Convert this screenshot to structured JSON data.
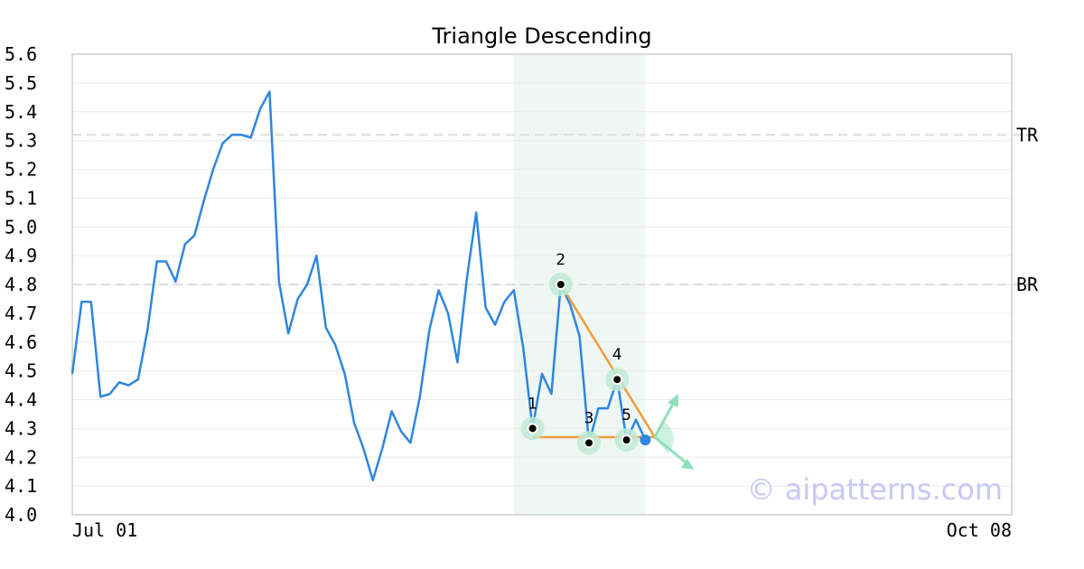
{
  "chart_data": {
    "type": "line",
    "title": "Triangle Descending",
    "xlabel": "",
    "ylabel": "",
    "ylim": [
      4.0,
      5.6
    ],
    "yticks": [
      "4.0",
      "4.1",
      "4.2",
      "4.3",
      "4.4",
      "4.5",
      "4.6",
      "4.7",
      "4.8",
      "4.9",
      "5.0",
      "5.1",
      "5.2",
      "5.3",
      "5.4",
      "5.5",
      "5.6"
    ],
    "xticks": [
      {
        "label": "Jul 01",
        "x": 0
      },
      {
        "label": "Oct 08",
        "x": 100
      }
    ],
    "xlim": [
      0,
      100
    ],
    "grid": true,
    "series": [
      {
        "color": "#2e86de",
        "values": [
          4.49,
          4.74,
          4.74,
          4.41,
          4.42,
          4.46,
          4.45,
          4.47,
          4.64,
          4.88,
          4.88,
          4.81,
          4.94,
          4.97,
          5.09,
          5.2,
          5.29,
          5.32,
          5.32,
          5.31,
          5.41,
          5.47,
          4.81,
          4.63,
          4.75,
          4.8,
          4.9,
          4.65,
          4.59,
          4.49,
          4.32,
          4.23,
          4.12,
          4.23,
          4.36,
          4.29,
          4.25,
          4.41,
          4.64,
          4.78,
          4.7,
          4.53,
          4.82,
          5.05,
          4.72,
          4.66,
          4.74,
          4.78,
          4.58,
          4.3,
          4.49,
          4.42,
          4.8,
          4.73,
          4.62,
          4.25,
          4.37,
          4.37,
          4.47,
          4.26,
          4.33,
          4.26
        ]
      }
    ],
    "reference_lines": [
      {
        "label": "TR",
        "y": 5.32
      },
      {
        "label": "BR",
        "y": 4.8
      }
    ],
    "highlight_range": {
      "x_start": 47,
      "x_end": 61,
      "color": "#eef7f3"
    },
    "pattern_points": [
      {
        "label": "1",
        "x": 49,
        "y": 4.3
      },
      {
        "label": "2",
        "x": 52,
        "y": 4.8
      },
      {
        "label": "3",
        "x": 55,
        "y": 4.25
      },
      {
        "label": "4",
        "x": 58,
        "y": 4.47
      },
      {
        "label": "5",
        "x": 59,
        "y": 4.26
      }
    ],
    "pattern_lines": {
      "color": "#f39c3d",
      "upper": [
        {
          "x": 52,
          "y": 4.8
        },
        {
          "x": 62,
          "y": 4.27
        }
      ],
      "lower": [
        {
          "x": 49,
          "y": 4.27
        },
        {
          "x": 62,
          "y": 4.27
        }
      ]
    },
    "last_point": {
      "x": 61,
      "y": 4.26,
      "color": "#2e86de"
    },
    "breakout_arrows": {
      "color": "#8fe0b8"
    },
    "watermark": "© aipatterns.com"
  }
}
